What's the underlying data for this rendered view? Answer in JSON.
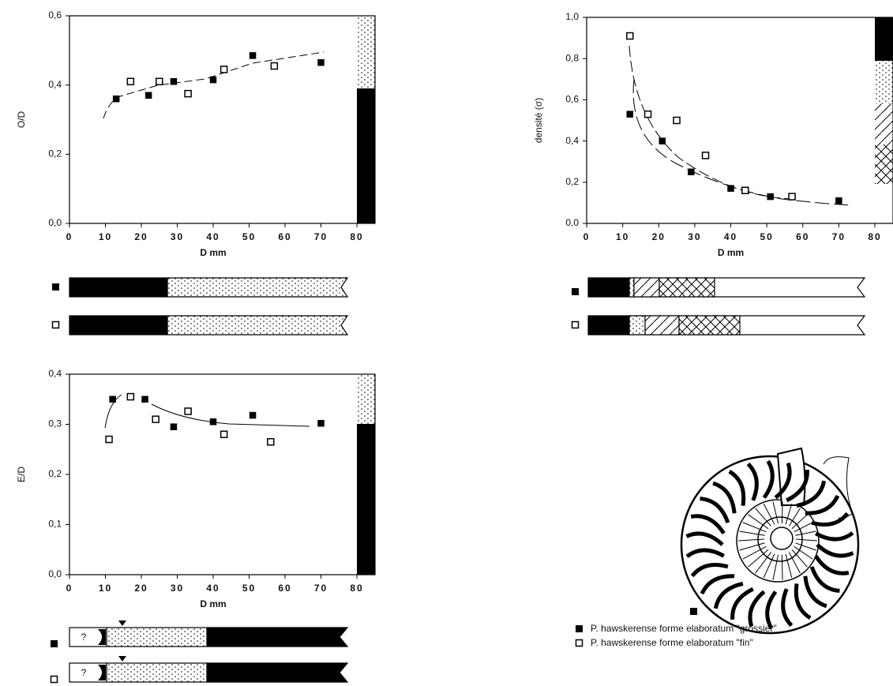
{
  "chart_data": [
    {
      "type": "scatter",
      "xlabel": "D mm",
      "ylabel": "O/D",
      "xlim": [
        0,
        80
      ],
      "xticks": [
        0,
        10,
        20,
        30,
        40,
        50,
        60,
        70,
        80
      ],
      "ylim": [
        0,
        0.6
      ],
      "yticks": [
        {
          "value": 0,
          "label": "0,0"
        },
        {
          "value": 0.2,
          "label": "0,2"
        },
        {
          "value": 0.4,
          "label": "0,4"
        },
        {
          "value": 0.6,
          "label": "0,6"
        }
      ],
      "series": [
        {
          "marker": "filled",
          "color": "#000000",
          "x": [
            13,
            22,
            29,
            40,
            51,
            70
          ],
          "values": [
            0.36,
            0.37,
            0.41,
            0.415,
            0.485,
            0.465
          ]
        },
        {
          "marker": "open",
          "color": "#000000",
          "x": [
            17,
            25,
            33,
            43,
            57
          ],
          "values": [
            0.41,
            0.41,
            0.375,
            0.445,
            0.455
          ]
        }
      ]
    },
    {
      "type": "scatter",
      "xlabel": "D mm",
      "ylabel": "densité (σ)",
      "xlim": [
        0,
        80
      ],
      "xticks": [
        0,
        10,
        20,
        30,
        40,
        50,
        60,
        70,
        80
      ],
      "ylim": [
        0,
        1
      ],
      "yticks": [
        {
          "value": 0,
          "label": "0,0"
        },
        {
          "value": 0.2,
          "label": "0,2"
        },
        {
          "value": 0.4,
          "label": "0,4"
        },
        {
          "value": 0.6,
          "label": "0,6"
        },
        {
          "value": 0.8,
          "label": "0,8"
        },
        {
          "value": 1,
          "label": "1,0"
        }
      ],
      "series": [
        {
          "marker": "filled",
          "color": "#000000",
          "x": [
            12,
            21,
            29,
            40,
            51,
            70
          ],
          "values": [
            0.53,
            0.4,
            0.25,
            0.17,
            0.13,
            0.11
          ]
        },
        {
          "marker": "open",
          "color": "#000000",
          "x": [
            12,
            17,
            25,
            33,
            44,
            57
          ],
          "values": [
            0.91,
            0.53,
            0.5,
            0.33,
            0.16,
            0.13
          ]
        }
      ]
    },
    {
      "type": "scatter",
      "xlabel": "D mm",
      "ylabel": "E/D",
      "xlim": [
        0,
        80
      ],
      "xticks": [
        0,
        10,
        20,
        30,
        40,
        50,
        60,
        70,
        80
      ],
      "ylim": [
        0,
        0.4
      ],
      "yticks": [
        {
          "value": 0,
          "label": "0,0"
        },
        {
          "value": 0.1,
          "label": "0,1"
        },
        {
          "value": 0.2,
          "label": "0,2"
        },
        {
          "value": 0.3,
          "label": "0,3"
        },
        {
          "value": 0.4,
          "label": "0,4"
        }
      ],
      "series": [
        {
          "marker": "filled",
          "color": "#000000",
          "x": [
            12,
            21,
            29,
            40,
            51,
            70
          ],
          "values": [
            0.35,
            0.35,
            0.295,
            0.305,
            0.318,
            0.302
          ]
        },
        {
          "marker": "open",
          "color": "#000000",
          "x": [
            11,
            17,
            24,
            33,
            43,
            56
          ],
          "values": [
            0.27,
            0.355,
            0.31,
            0.326,
            0.28,
            0.265
          ]
        }
      ]
    }
  ],
  "legend": [
    {
      "marker": "filled",
      "label": "P. hawskerense forme elaboratum \"grossier\""
    },
    {
      "marker": "open",
      "label": "P. hawskerense forme elaboratum \"fin\""
    }
  ],
  "strip_note": "?"
}
